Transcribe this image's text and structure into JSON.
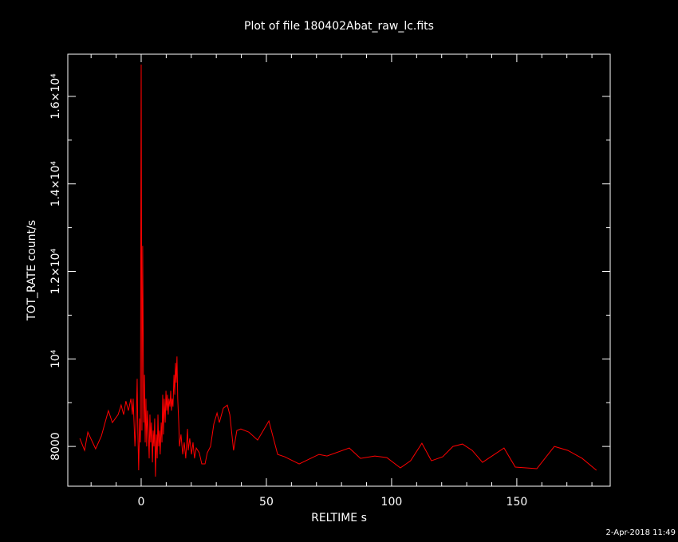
{
  "chart_data": {
    "type": "line",
    "title": "Plot of file 180402Abat_raw_lc.fits",
    "xlabel": "RELTIME  s",
    "ylabel": "TOT_RATE  count/s",
    "footer": "2-Apr-2018 11:49",
    "xlim": [
      -29.3,
      187.3
    ],
    "ylim": [
      7091,
      16964
    ],
    "xticks": [
      0,
      50,
      100,
      150
    ],
    "xminorticks": [
      -20,
      -10,
      10,
      20,
      30,
      40,
      60,
      70,
      80,
      90,
      110,
      120,
      130,
      140,
      160,
      170,
      180
    ],
    "yticks": [
      8000,
      {
        "value": 10000,
        "label": "10⁴"
      },
      {
        "value": 12000,
        "label": "1.2×10⁴"
      },
      {
        "value": 14000,
        "label": "1.4×10⁴"
      },
      {
        "value": 16000,
        "label": "1.6×10⁴"
      }
    ],
    "yminorticks": [
      9000,
      11000,
      13000,
      15000
    ],
    "series": [
      {
        "color": "#ff0000",
        "x": [
          -24.5,
          -22.6,
          -21.3,
          -18.2,
          -15.9,
          -13.1,
          -11.5,
          -9.2,
          -8.0,
          -7.0,
          -6.1,
          -5.1,
          -4.1,
          -3.5,
          -3.2,
          -2.5,
          -1.9,
          -1.6,
          -1.3,
          -1.0,
          -0.6,
          -0.3,
          0,
          0.3,
          0.6,
          1.0,
          1.3,
          1.6,
          1.9,
          2.2,
          2.5,
          2.9,
          3.2,
          3.5,
          3.8,
          4.1,
          4.5,
          4.8,
          5.1,
          5.4,
          5.7,
          6.1,
          6.4,
          6.7,
          7.0,
          7.3,
          7.6,
          8.0,
          8.3,
          8.6,
          8.9,
          9.2,
          9.6,
          9.9,
          10.2,
          10.5,
          10.8,
          11.1,
          11.5,
          11.8,
          12.1,
          12.4,
          12.7,
          13.1,
          13.4,
          13.7,
          14.0,
          14.3,
          14.6,
          15.0,
          15.3,
          15.9,
          16.6,
          17.2,
          17.8,
          18.5,
          18.8,
          19.4,
          20.1,
          20.7,
          21.3,
          22.0,
          23.2,
          24.2,
          25.5,
          26.4,
          27.7,
          29.0,
          30.3,
          31.2,
          32.8,
          34.4,
          35.4,
          36.9,
          38.2,
          39.8,
          43.0,
          46.5,
          51.0,
          54.5,
          57.3,
          63.1,
          71.0,
          74.2,
          83.1,
          87.6,
          93.3,
          98.1,
          103.5,
          107.6,
          112.1,
          115.9,
          120.4,
          124.5,
          128.3,
          132.2,
          136.3,
          144.9,
          149.4,
          158.0,
          165.0,
          170.4,
          176.1,
          181.8
        ],
        "values": [
          8182,
          7909,
          8327,
          7945,
          8236,
          8818,
          8545,
          8727,
          8945,
          8727,
          9036,
          8818,
          9091,
          8727,
          9091,
          8000,
          8727,
          9545,
          8273,
          7455,
          8636,
          8091,
          16727,
          8364,
          12582,
          8545,
          9636,
          8091,
          9091,
          8000,
          8818,
          8273,
          7727,
          8727,
          8091,
          8545,
          7636,
          8364,
          8000,
          8636,
          7309,
          8273,
          7727,
          8727,
          8000,
          8364,
          7818,
          8545,
          8091,
          9182,
          8273,
          9091,
          8545,
          9273,
          8818,
          9182,
          8727,
          9091,
          8909,
          9273,
          8818,
          9091,
          8909,
          9636,
          9182,
          9909,
          9455,
          10055,
          9091,
          8545,
          8000,
          8273,
          7818,
          8091,
          7727,
          8400,
          7909,
          8182,
          7818,
          8091,
          7727,
          7964,
          7855,
          7600,
          7600,
          7855,
          8000,
          8509,
          8764,
          8545,
          8873,
          8945,
          8727,
          7909,
          8364,
          8400,
          8327,
          8145,
          8582,
          7818,
          7764,
          7600,
          7818,
          7782,
          7964,
          7727,
          7782,
          7745,
          7509,
          7673,
          8073,
          7673,
          7764,
          8000,
          8055,
          7909,
          7636,
          7964,
          7527,
          7491,
          8000,
          7909,
          7727,
          7455
        ]
      }
    ]
  }
}
